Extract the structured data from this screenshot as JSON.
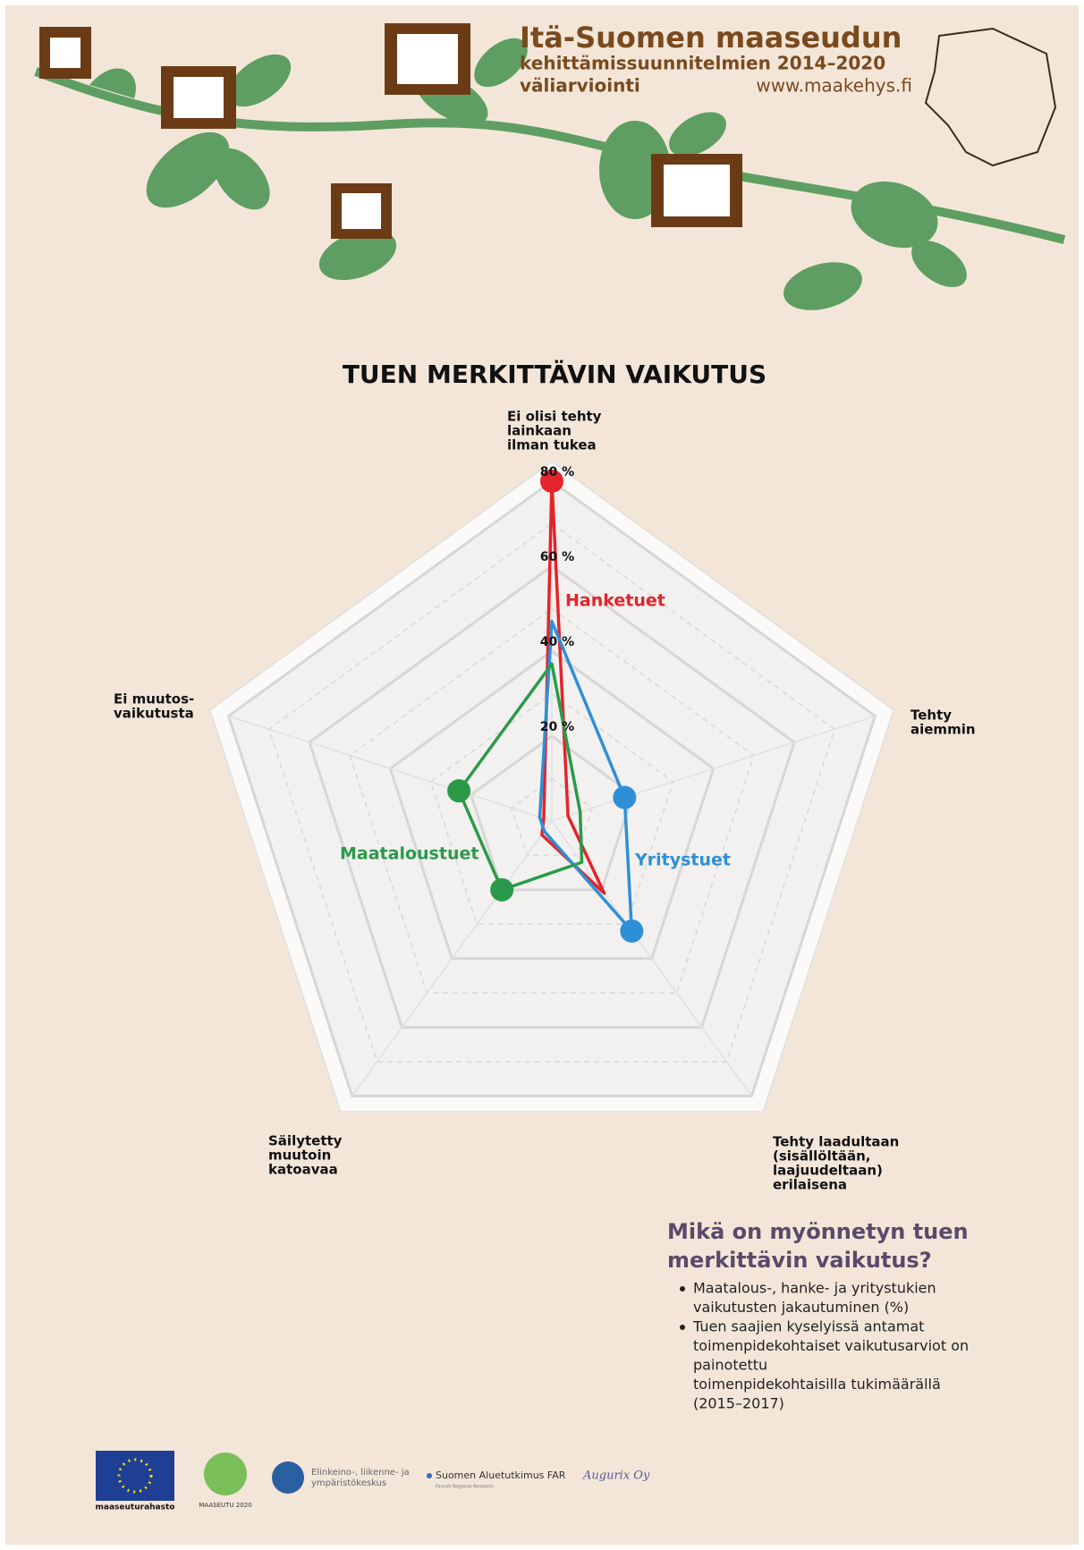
{
  "header": {
    "title": "Itä-Suomen maaseudun",
    "subtitle": "kehittämissuunnitelmien 2014–2020",
    "subtitle2": "väliarviointi",
    "url": "www.maakehys.fi"
  },
  "chart_data": {
    "type": "radar",
    "title": "TUEN MERKITTÄVIN VAIKUTUS",
    "categories": [
      [
        "Ei olisi tehty",
        "lainkaan",
        "ilman tukea"
      ],
      [
        "Tehty",
        "aiemmin"
      ],
      [
        "Tehty laadultaan",
        "(sisällöltään,",
        "laajuudeltaan)",
        "erilaisena"
      ],
      [
        "Säilytetty",
        "muutoin",
        "katoavaa"
      ],
      [
        "Ei muutos-",
        "vaikutusta"
      ]
    ],
    "series": [
      {
        "name": "Hanketuet",
        "color": "#e3242b",
        "values": [
          80,
          4,
          21,
          4,
          2
        ],
        "markers": [
          0
        ]
      },
      {
        "name": "Yritystuet",
        "color": "#2f8fd6",
        "values": [
          47,
          18,
          32,
          3,
          3
        ],
        "markers": [
          1,
          2
        ]
      },
      {
        "name": "Maataloustuet",
        "color": "#2a9a4a",
        "values": [
          37,
          7,
          12,
          20,
          23
        ],
        "markers": [
          3,
          4
        ]
      }
    ],
    "ylim": [
      0,
      80
    ],
    "yticks": [
      {
        "value": 20,
        "label": "20 %"
      },
      {
        "value": 40,
        "label": "40 %"
      },
      {
        "value": 60,
        "label": "60 %"
      },
      {
        "value": 80,
        "label": "80 %"
      }
    ],
    "grid": true
  },
  "notes": {
    "heading": [
      "Mikä on myönnetyn tuen",
      "merkittävin vaikutus?"
    ],
    "bullets": [
      [
        "Maatalous-, hanke- ja yritystukien",
        "vaikutusten jakautuminen (%)"
      ],
      [
        "Tuen saajien kyselyissä antamat",
        "toimenpidekohtaiset vaikutusarviot on",
        "painotettu",
        "toimenpidekohtaisilla tukimäärällä",
        "(2015–2017)"
      ]
    ]
  },
  "logos": {
    "eu": "maaseuturahasto",
    "maaseutu": "MAASEUTU 2020",
    "ely": [
      "Elinkeino-, liikenne- ja",
      "ympäristökeskus"
    ],
    "far": "Suomen Aluetutkimus FAR",
    "far_sub": "Finnish Regional Research",
    "augurix": "Augurix Oy"
  }
}
